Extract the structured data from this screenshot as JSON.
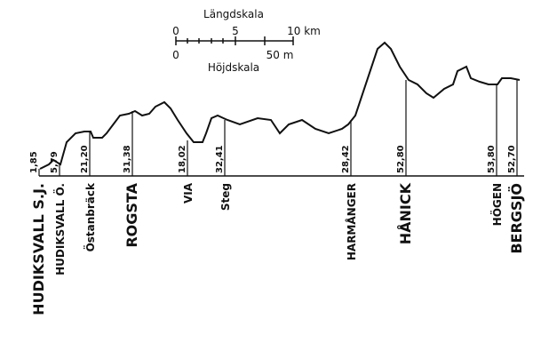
{
  "scale": {
    "length_title": "Längdskala",
    "length_ticks": [
      "0",
      "5",
      "10 km"
    ],
    "height_ticks": [
      "0",
      "50 m"
    ],
    "height_title": "Höjdskala"
  },
  "stations": [
    {
      "name": "HUDIKSVALL S.J.",
      "height": "1,85"
    },
    {
      "name": "HUDIKSVALL Ö.",
      "height": "5,79"
    },
    {
      "name": "Östanbräck",
      "height": "21,20"
    },
    {
      "name": "ROGSTA",
      "height": "31,38"
    },
    {
      "name": "VIA",
      "height": "18,02"
    },
    {
      "name": "Steg",
      "height": "32,41"
    },
    {
      "name": "HARMÅNGER",
      "height": "28,42"
    },
    {
      "name": "HÅNICK",
      "height": "52,80"
    },
    {
      "name": "HÖGEN",
      "height": "53,80"
    },
    {
      "name": "BERGSJÖ",
      "height": "52,70"
    }
  ]
}
